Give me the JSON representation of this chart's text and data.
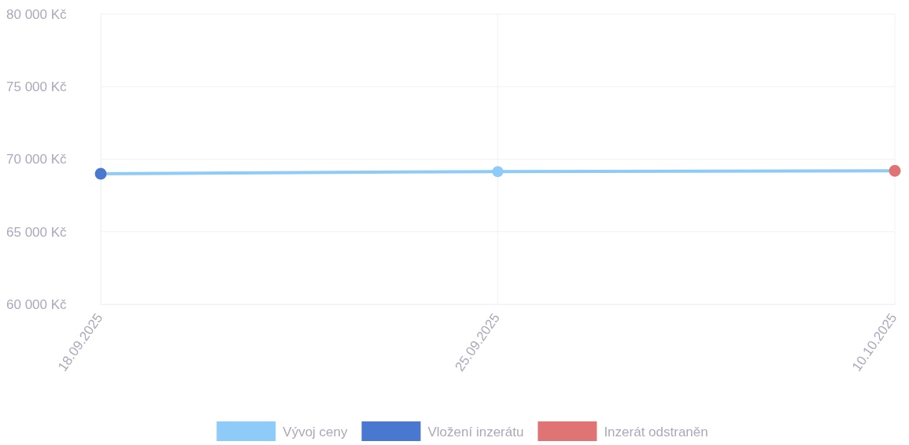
{
  "chart_data": {
    "type": "line",
    "categories": [
      "18.09.2025",
      "25.09.2025",
      "10.10.2025"
    ],
    "series": [
      {
        "name": "Vývoj ceny",
        "color": "#8ecbf8",
        "values": [
          69000,
          69150,
          69200
        ]
      },
      {
        "name": "Vložení inzerátu",
        "type": "scatter",
        "color": "#4a77cf",
        "values": [
          69000,
          null,
          null
        ]
      },
      {
        "name": "Inzerát odstraněn",
        "type": "scatter",
        "color": "#e07474",
        "values": [
          null,
          null,
          69200
        ]
      }
    ],
    "ylim": [
      60000,
      80000
    ],
    "yticks": [
      {
        "value": 60000,
        "label": "60 000 Kč"
      },
      {
        "value": 65000,
        "label": "65 000 Kč"
      },
      {
        "value": 70000,
        "label": "70 000 Kč"
      },
      {
        "value": 75000,
        "label": "75 000 Kč"
      },
      {
        "value": 80000,
        "label": "80 000 Kč"
      }
    ],
    "grid": true,
    "legend": "bottom",
    "marker": "circle"
  }
}
